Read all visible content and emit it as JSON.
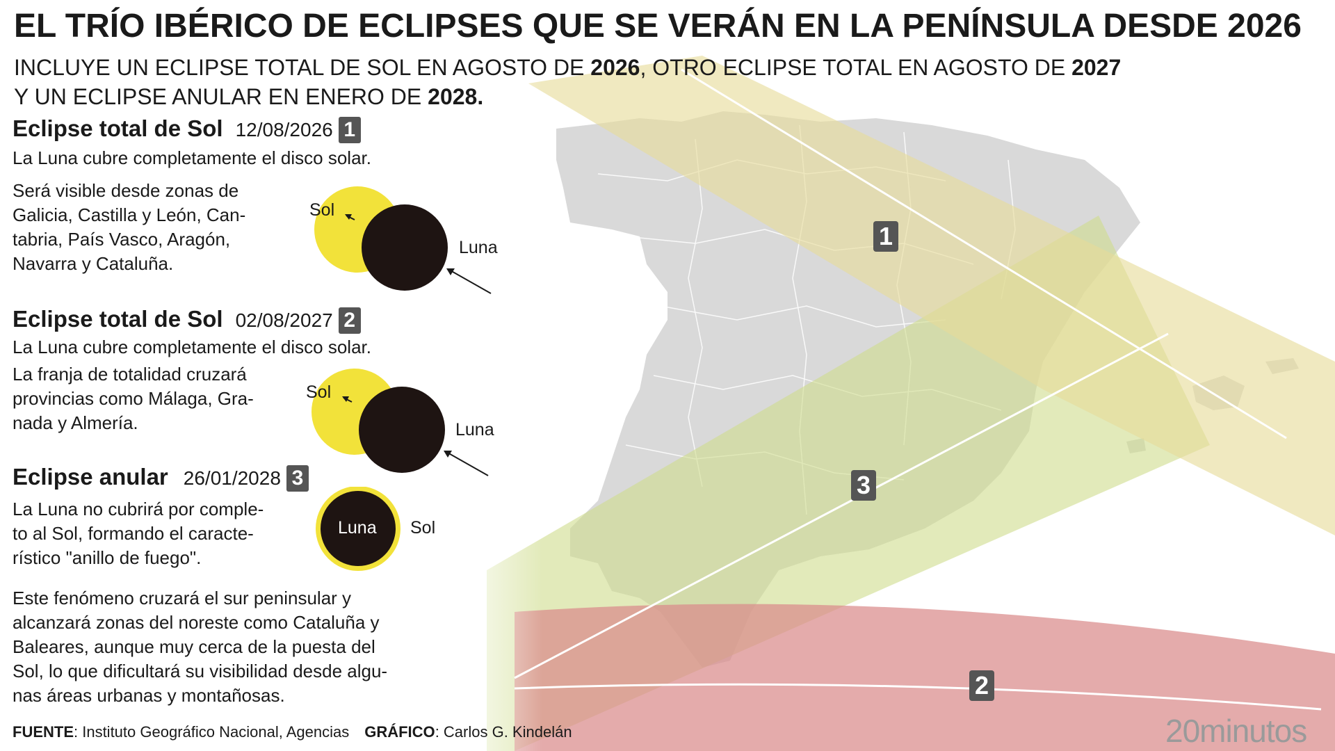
{
  "header": {
    "title": "EL TRÍO IBÉRICO DE ECLIPSES QUE SE VERÁN EN LA PENÍNSULA DESDE 2026",
    "sub1_pre": "INCLUYE UN ECLIPSE TOTAL DE SOL  EN AGOSTO DE ",
    "sub1_y1": "2026",
    "sub1_mid": ", OTRO ECLIPSE TOTAL EN AGOSTO DE ",
    "sub1_y2": "2027",
    "sub2_pre": "Y UN ECLIPSE ANULAR EN ENERO DE ",
    "sub2_y": "2028."
  },
  "sections": [
    {
      "heading": "Eclipse total de Sol",
      "date": "12/08/2026",
      "badge": "1",
      "intro": "La Luna cubre completamente el disco solar.",
      "lines": [
        "Será visible desde zonas de",
        "Galicia, Castilla y León, Can-",
        "tabria, País Vasco, Aragón,",
        "Navarra y Cataluña."
      ],
      "sun_label": "Sol",
      "moon_label": "Luna"
    },
    {
      "heading": "Eclipse total de Sol",
      "date": "02/08/2027",
      "badge": "2",
      "intro": "La Luna cubre completamente el disco solar.",
      "lines": [
        "La franja de totalidad cruzará",
        "provincias como Málaga, Gra-",
        "nada y Almería."
      ],
      "sun_label": "Sol",
      "moon_label": "Luna"
    },
    {
      "heading": "Eclipse anular",
      "date": "26/01/2028",
      "badge": "3",
      "intro": "",
      "lines": [
        "La Luna no cubrirá por comple-",
        "to al Sol, formando el caracte-",
        "rístico \"anillo de fuego\"."
      ],
      "sun_label": "Sol",
      "moon_label": "Luna"
    }
  ],
  "extra_paragraph": [
    "Este fenómeno cruzará el sur peninsular y",
    "alcanzará zonas del noreste como Cataluña y",
    "Baleares, aunque muy cerca de la puesta del",
    "Sol, lo que dificultará su visibilidad desde algu-",
    "nas áreas urbanas y montañosas."
  ],
  "footer": {
    "source_label": "FUENTE",
    "source_text": ": Instituto Geográfico Nacional, Agencias",
    "graphic_label": "GRÁFICO",
    "graphic_text": ": Carlos G. Kindelán",
    "brand": "20minutos"
  },
  "map": {
    "path_badges": [
      "1",
      "2",
      "3"
    ],
    "colors": {
      "land": "#d9d9d9",
      "band_2026": "#e6dc9a",
      "band_2027": "#d98a8a",
      "band_2028": "#cfdc8c",
      "sun": "#f2e23a",
      "moon": "#1e1412",
      "badge": "#555555"
    }
  }
}
